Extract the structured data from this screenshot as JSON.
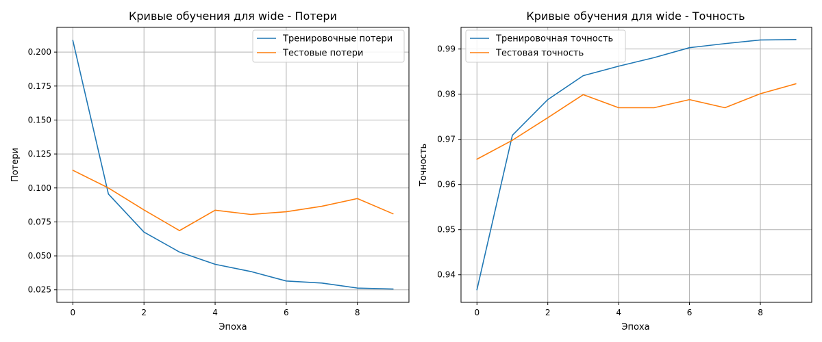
{
  "chart_data": [
    {
      "type": "line",
      "title": "Кривые обучения для wide - Потери",
      "xlabel": "Эпоха",
      "ylabel": "Потери",
      "xlim": [
        -0.45,
        9.45
      ],
      "ylim": [
        0.0158,
        0.2182
      ],
      "xticks": [
        0,
        2,
        4,
        6,
        8
      ],
      "yticks": [
        0.025,
        0.05,
        0.075,
        0.1,
        0.125,
        0.15,
        0.175,
        0.2
      ],
      "ytick_labels": [
        "0.025",
        "0.050",
        "0.075",
        "0.100",
        "0.125",
        "0.150",
        "0.175",
        "0.200"
      ],
      "grid": true,
      "legend_position": "top-right",
      "x": [
        0,
        1,
        2,
        3,
        4,
        5,
        6,
        7,
        8,
        9
      ],
      "series": [
        {
          "name": "Тренировочные потери",
          "color": "#1f77b4",
          "values": [
            0.2085,
            0.0955,
            0.0675,
            0.0528,
            0.0438,
            0.0385,
            0.0315,
            0.03,
            0.0263,
            0.0256
          ]
        },
        {
          "name": "Тестовые потери",
          "color": "#ff7f0e",
          "values": [
            0.113,
            0.1,
            0.0838,
            0.0686,
            0.0836,
            0.0805,
            0.0825,
            0.0865,
            0.0922,
            0.081
          ]
        }
      ]
    },
    {
      "type": "line",
      "title": "Кривые обучения для wide - Точность",
      "xlabel": "Эпоха",
      "ylabel": "Точность",
      "xlim": [
        -0.45,
        9.45
      ],
      "ylim": [
        0.9339,
        0.9948
      ],
      "xticks": [
        0,
        2,
        4,
        6,
        8
      ],
      "yticks": [
        0.94,
        0.95,
        0.96,
        0.97,
        0.98,
        0.99
      ],
      "ytick_labels": [
        "0.94",
        "0.95",
        "0.96",
        "0.97",
        "0.98",
        "0.99"
      ],
      "grid": true,
      "legend_position": "top-left",
      "x": [
        0,
        1,
        2,
        3,
        4,
        5,
        6,
        7,
        8,
        9
      ],
      "series": [
        {
          "name": "Тренировочная точность",
          "color": "#1f77b4",
          "values": [
            0.9367,
            0.9709,
            0.9788,
            0.9841,
            0.9862,
            0.9881,
            0.9903,
            0.9912,
            0.992,
            0.9921
          ]
        },
        {
          "name": "Тестовая точность",
          "color": "#ff7f0e",
          "values": [
            0.9656,
            0.9698,
            0.9748,
            0.9799,
            0.977,
            0.977,
            0.9788,
            0.977,
            0.9801,
            0.9823
          ]
        }
      ]
    }
  ]
}
